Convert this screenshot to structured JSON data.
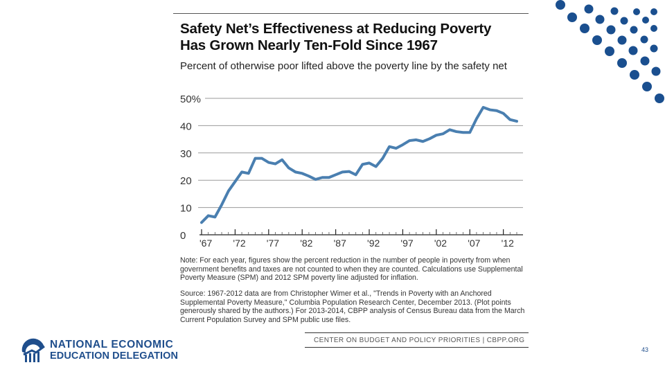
{
  "slide": {
    "page_number": "43",
    "org_name_line1": "NATIONAL ECONOMIC",
    "org_name_line2": "EDUCATION DELEGATION",
    "brand_color": "#1f4e8c"
  },
  "figure": {
    "title_line1": "Safety Net’s Effectiveness at Reducing Poverty",
    "title_line2": "Has Grown Nearly Ten-Fold Since 1967",
    "subtitle": "Percent of otherwise poor lifted above the poverty line by the safety net",
    "note": "Note: For each year, figures show the percent reduction in the number of people in poverty from when government benefits and taxes are not counted to when they are counted. Calculations use Supplemental Poverty Measure (SPM) and 2012 SPM poverty line adjusted for inflation.",
    "source": "Source: 1967-2012 data are from Christopher Wimer et al., \"Trends in Poverty with an Anchored Supplemental Poverty Measure,\" Columbia Population Research Center, December 2013. (Plot points generously shared by the authors.) For 2013-2014, CBPP analysis of Census Bureau data from the March Current Population Survey and SPM public use files.",
    "footer": "CENTER ON BUDGET AND POLICY PRIORITIES | CBPP.ORG"
  },
  "chart_data": {
    "type": "line",
    "title": "Safety Net’s Effectiveness at Reducing Poverty Has Grown Nearly Ten-Fold Since 1967",
    "subtitle": "Percent of otherwise poor lifted above the poverty line by the safety net",
    "xlabel": "",
    "ylabel": "",
    "line_color": "#4a7fb0",
    "x": [
      1967,
      1968,
      1969,
      1970,
      1971,
      1972,
      1973,
      1974,
      1975,
      1976,
      1977,
      1978,
      1979,
      1980,
      1981,
      1982,
      1983,
      1984,
      1985,
      1986,
      1987,
      1988,
      1989,
      1990,
      1991,
      1992,
      1993,
      1994,
      1995,
      1996,
      1997,
      1998,
      1999,
      2000,
      2001,
      2002,
      2003,
      2004,
      2005,
      2006,
      2007,
      2008,
      2009,
      2010,
      2011,
      2012,
      2013,
      2014
    ],
    "series": [
      {
        "name": "Percent lifted above poverty line",
        "values": [
          4.5,
          7,
          6.5,
          11,
          16,
          19.5,
          23,
          22.5,
          28,
          28,
          26.5,
          26,
          27.5,
          24.5,
          23,
          22.5,
          21.5,
          20.3,
          21,
          21,
          22,
          23,
          23.2,
          22,
          25.8,
          26.3,
          25,
          28,
          32.3,
          31.7,
          33,
          34.5,
          34.8,
          34.2,
          35.2,
          36.5,
          37,
          38.5,
          37.8,
          37.5,
          37.5,
          42.5,
          46.7,
          45.8,
          45.5,
          44.5,
          42.2,
          41.6
        ]
      }
    ],
    "ylim": [
      0,
      50
    ],
    "yticks": [
      0,
      10,
      20,
      30,
      40,
      50
    ],
    "ytick_labels": [
      "0",
      "10",
      "20",
      "30",
      "40",
      "50%"
    ],
    "xlim": [
      1967,
      2014
    ],
    "xticks": [
      1967,
      1972,
      1977,
      1982,
      1987,
      1992,
      1997,
      2002,
      2007,
      2012
    ],
    "xtick_labels": [
      "'67",
      "'72",
      "'77",
      "'82",
      "'87",
      "'92",
      "'97",
      "'02",
      "'07",
      "'12"
    ],
    "grid": true,
    "legend": "none"
  }
}
